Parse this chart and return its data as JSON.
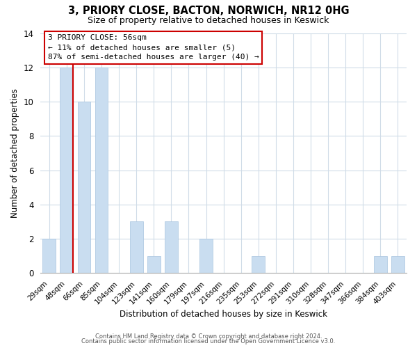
{
  "title": "3, PRIORY CLOSE, BACTON, NORWICH, NR12 0HG",
  "subtitle": "Size of property relative to detached houses in Keswick",
  "xlabel": "Distribution of detached houses by size in Keswick",
  "ylabel": "Number of detached properties",
  "categories": [
    "29sqm",
    "48sqm",
    "66sqm",
    "85sqm",
    "104sqm",
    "123sqm",
    "141sqm",
    "160sqm",
    "179sqm",
    "197sqm",
    "216sqm",
    "235sqm",
    "253sqm",
    "272sqm",
    "291sqm",
    "310sqm",
    "328sqm",
    "347sqm",
    "366sqm",
    "384sqm",
    "403sqm"
  ],
  "values": [
    2,
    12,
    10,
    12,
    0,
    3,
    1,
    3,
    0,
    2,
    0,
    0,
    1,
    0,
    0,
    0,
    0,
    0,
    0,
    1,
    1
  ],
  "bar_color": "#c9ddf0",
  "red_line_after_index": 1,
  "ylim": [
    0,
    14
  ],
  "yticks": [
    0,
    2,
    4,
    6,
    8,
    10,
    12,
    14
  ],
  "annotation_line1": "3 PRIORY CLOSE: 56sqm",
  "annotation_line2": "← 11% of detached houses are smaller (5)",
  "annotation_line3": "87% of semi-detached houses are larger (40) →",
  "annotation_box_color": "#ffffff",
  "annotation_box_edgecolor": "#cc0000",
  "footer_line1": "Contains HM Land Registry data © Crown copyright and database right 2024.",
  "footer_line2": "Contains public sector information licensed under the Open Government Licence v3.0.",
  "background_color": "#ffffff",
  "grid_color": "#d0dce8"
}
